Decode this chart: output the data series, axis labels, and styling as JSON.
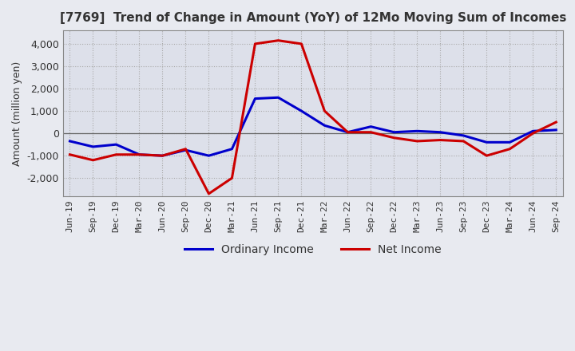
{
  "title": "[7769]  Trend of Change in Amount (YoY) of 12Mo Moving Sum of Incomes",
  "ylabel": "Amount (million yen)",
  "x_labels": [
    "Jun-19",
    "Sep-19",
    "Dec-19",
    "Mar-20",
    "Jun-20",
    "Sep-20",
    "Dec-20",
    "Mar-21",
    "Jun-21",
    "Sep-21",
    "Dec-21",
    "Mar-22",
    "Jun-22",
    "Sep-22",
    "Dec-22",
    "Mar-23",
    "Jun-23",
    "Sep-23",
    "Dec-23",
    "Mar-24",
    "Jun-24",
    "Sep-24"
  ],
  "ordinary_income": [
    -350,
    -600,
    -500,
    -950,
    -1000,
    -750,
    -1000,
    -700,
    1550,
    1600,
    1000,
    350,
    50,
    300,
    50,
    100,
    50,
    -100,
    -400,
    -400,
    100,
    150
  ],
  "net_income": [
    -950,
    -1200,
    -950,
    -950,
    -1000,
    -700,
    -2700,
    -2000,
    4000,
    4150,
    4000,
    1000,
    50,
    50,
    -200,
    -350,
    -300,
    -350,
    -1000,
    -700,
    0,
    500
  ],
  "ordinary_income_color": "#0000cc",
  "net_income_color": "#cc0000",
  "ylim": [
    -2800,
    4600
  ],
  "yticks": [
    -2000,
    -1000,
    0,
    1000,
    2000,
    3000,
    4000
  ],
  "background_color": "#e8eaf0",
  "plot_background": "#dde0ea",
  "grid_color": "#aaaaaa",
  "spine_color": "#888888",
  "line_width": 2.2
}
